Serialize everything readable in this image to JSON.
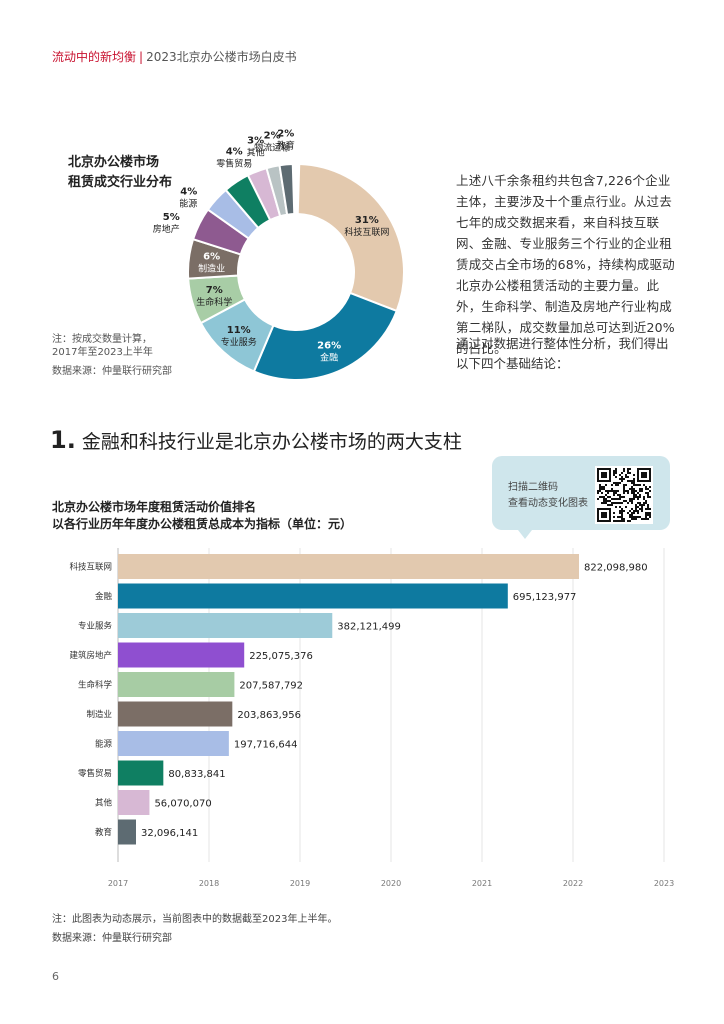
{
  "header": {
    "series": "流动中的新均衡",
    "separator": "|",
    "report": "2023北京办公楼市场白皮书"
  },
  "donut": {
    "title_line1": "北京办公楼市场",
    "title_line2": "租赁成交行业分布",
    "note_line1": "注：按成交数量计算，",
    "note_line2": "2017年至2023上半年",
    "source": "数据来源：仲量联行研究部"
  },
  "paragraph1": "上述八千余条租约共包含7,226个企业主体，主要涉及十个重点行业。从过去七年的成交数据来看，来自科技互联网、金融、专业服务三个行业的企业租赁成交占全市场的68%，持续构成驱动北京办公楼租赁活动的主要力量。此外，生命科学、制造及房地产行业构成第二梯队，成交数量加总可达到近20%的占比。",
  "paragraph2": "通过对数据进行整体性分析，我们得出以下四个基础结论：",
  "section": {
    "number": "1.",
    "title": "金融和科技行业是北京办公楼市场的两大支柱"
  },
  "callout": {
    "line1": "扫描二维码",
    "line2": "查看动态变化图表"
  },
  "bar_chart_title": {
    "line1": "北京办公楼市场年度租赁活动价值排名",
    "line2": "以各行业历年年度办公楼租赁总成本为指标（单位：元）"
  },
  "footnote": "注：此图表为动态展示，当前图表中的数据截至2023年上半年。",
  "footsource": "数据来源：仲量联行研究部",
  "page_number": "6",
  "chart_data": [
    {
      "type": "pie",
      "donut": true,
      "categories": [
        "科技互联网",
        "金融",
        "专业服务",
        "生命科学",
        "制造业",
        "房地产",
        "能源",
        "零售贸易",
        "其他",
        "物流运输",
        "教育"
      ],
      "values": [
        31,
        26,
        11,
        7,
        6,
        5,
        4,
        4,
        3,
        2,
        2
      ],
      "labels": [
        "31%",
        "26%",
        "11%",
        "7%",
        "6%",
        "5%",
        "4%",
        "4%",
        "3%",
        "2%",
        "2%"
      ],
      "colors": [
        "#e3c9ae",
        "#0e7aa0",
        "#8ec6d6",
        "#a8cda6",
        "#7b6e66",
        "#8e5a90",
        "#a8bde6",
        "#0f7f62",
        "#d7b8d4",
        "#b9c3c4",
        "#5d6b72"
      ]
    },
    {
      "type": "bar",
      "orientation": "horizontal",
      "categories": [
        "科技互联网",
        "金融",
        "专业服务",
        "建筑房地产",
        "生命科学",
        "制造业",
        "能源",
        "零售贸易",
        "其他",
        "教育"
      ],
      "values": [
        822098980,
        695123977,
        382121499,
        225075376,
        207587792,
        203863956,
        197716644,
        80833841,
        56070070,
        32096141
      ],
      "value_labels": [
        "822,098,980",
        "695,123,977",
        "382,121,499",
        "225,075,376",
        "207,587,792",
        "203,863,956",
        "197,716,644",
        "80,833,841",
        "56,070,070",
        "32,096,141"
      ],
      "colors": [
        "#e2c9af",
        "#0e7aa0",
        "#9dcbd8",
        "#8f4fd0",
        "#a7cca4",
        "#7b6e66",
        "#a8bde6",
        "#0f7f62",
        "#d7b8d4",
        "#5d6b72"
      ],
      "x_ticks": [
        "2017",
        "2018",
        "2019",
        "2020",
        "2021",
        "2022",
        "2023"
      ],
      "xlim": [
        0,
        822098980
      ],
      "grid": true
    }
  ]
}
